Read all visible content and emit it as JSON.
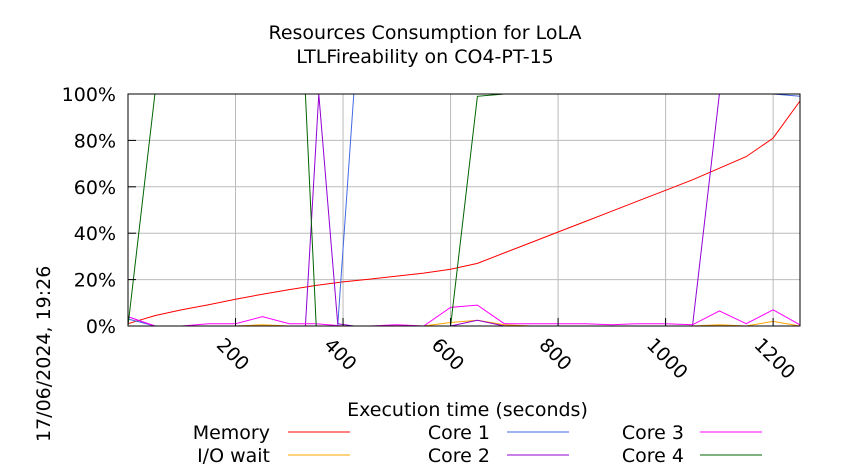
{
  "chart_data": {
    "type": "line",
    "title": "Resources Consumption for LoLA",
    "subtitle": "LTLFireability on CO4-PT-15",
    "xlabel": "Execution time (seconds)",
    "ylabel": "",
    "side_label": "17/06/2024, 19:26",
    "xlim": [
      0,
      1250
    ],
    "ylim": [
      0,
      100
    ],
    "x_ticks": [
      "200",
      "400",
      "600",
      "800",
      "1000",
      "1200"
    ],
    "x_tick_values": [
      200,
      400,
      600,
      800,
      1000,
      1200
    ],
    "y_ticks": [
      "0%",
      "20%",
      "40%",
      "60%",
      "80%",
      "100%"
    ],
    "y_tick_values": [
      0,
      20,
      40,
      60,
      80,
      100
    ],
    "grid": true,
    "legend_position": "bottom",
    "series": [
      {
        "name": "Memory",
        "color": "#ff0000",
        "x": [
          0,
          50,
          100,
          150,
          200,
          250,
          300,
          350,
          400,
          450,
          500,
          550,
          600,
          650,
          700,
          750,
          800,
          850,
          900,
          950,
          1000,
          1050,
          1100,
          1150,
          1200,
          1250
        ],
        "y": [
          1,
          4.5,
          7,
          9.2,
          11.5,
          13.7,
          15.7,
          17.5,
          19,
          20.2,
          21.5,
          22.8,
          24.5,
          27,
          31.5,
          36,
          40.5,
          45,
          49.5,
          54,
          58.5,
          63,
          68,
          73,
          81,
          97
        ]
      },
      {
        "name": "I/O wait",
        "color": "#ffa500",
        "x": [
          0,
          50,
          100,
          150,
          200,
          250,
          300,
          350,
          400,
          450,
          500,
          550,
          600,
          650,
          700,
          750,
          800,
          850,
          900,
          950,
          1000,
          1050,
          1100,
          1150,
          1200,
          1250
        ],
        "y": [
          0,
          0,
          0,
          0,
          0,
          0.5,
          0,
          0,
          0,
          0,
          0,
          0,
          1.5,
          2.5,
          0.5,
          0,
          0,
          0,
          0,
          0,
          0,
          0,
          0.5,
          0,
          2,
          0
        ]
      },
      {
        "name": "Core 1",
        "color": "#4169e1",
        "x": [
          0,
          50,
          100,
          150,
          200,
          250,
          300,
          350,
          390,
          420,
          500,
          600,
          700,
          800,
          900,
          1000,
          1100,
          1200,
          1250
        ],
        "y": [
          3,
          0,
          0,
          0,
          0,
          0,
          0,
          0,
          0,
          100,
          100,
          100,
          100,
          100,
          100,
          100,
          100,
          100,
          99
        ]
      },
      {
        "name": "Core 2",
        "color": "#9400d3",
        "x": [
          0,
          50,
          100,
          150,
          200,
          250,
          300,
          330,
          355,
          390,
          420,
          500,
          550,
          600,
          650,
          700,
          800,
          900,
          1000,
          1050,
          1100,
          1150,
          1200,
          1250
        ],
        "y": [
          4,
          0,
          0,
          0,
          0,
          0,
          0,
          0,
          100,
          1,
          0,
          0,
          0,
          0,
          2.5,
          0,
          0,
          0,
          0,
          0,
          100,
          100,
          100,
          100
        ]
      },
      {
        "name": "Core 3",
        "color": "#ff00ff",
        "x": [
          0,
          50,
          100,
          150,
          200,
          250,
          300,
          350,
          400,
          450,
          500,
          550,
          600,
          650,
          700,
          750,
          800,
          850,
          900,
          950,
          1000,
          1050,
          1100,
          1150,
          1200,
          1250
        ],
        "y": [
          4,
          0,
          0,
          1,
          1,
          4,
          1,
          1,
          0,
          0,
          0.5,
          0,
          8,
          9,
          1,
          1,
          1,
          1,
          0.5,
          1,
          1,
          0.5,
          6.5,
          1,
          7,
          0.5
        ]
      },
      {
        "name": "Core 4",
        "color": "#006400",
        "x": [
          0,
          50,
          100,
          150,
          200,
          250,
          300,
          330,
          350,
          400,
          450,
          500,
          550,
          600,
          650,
          700,
          800,
          900,
          1000,
          1100,
          1200,
          1250
        ],
        "y": [
          0,
          100,
          100,
          100,
          100,
          100,
          100,
          100,
          0,
          0,
          0,
          0,
          0,
          0,
          99,
          100,
          100,
          100,
          100,
          100,
          100,
          100
        ]
      }
    ]
  }
}
